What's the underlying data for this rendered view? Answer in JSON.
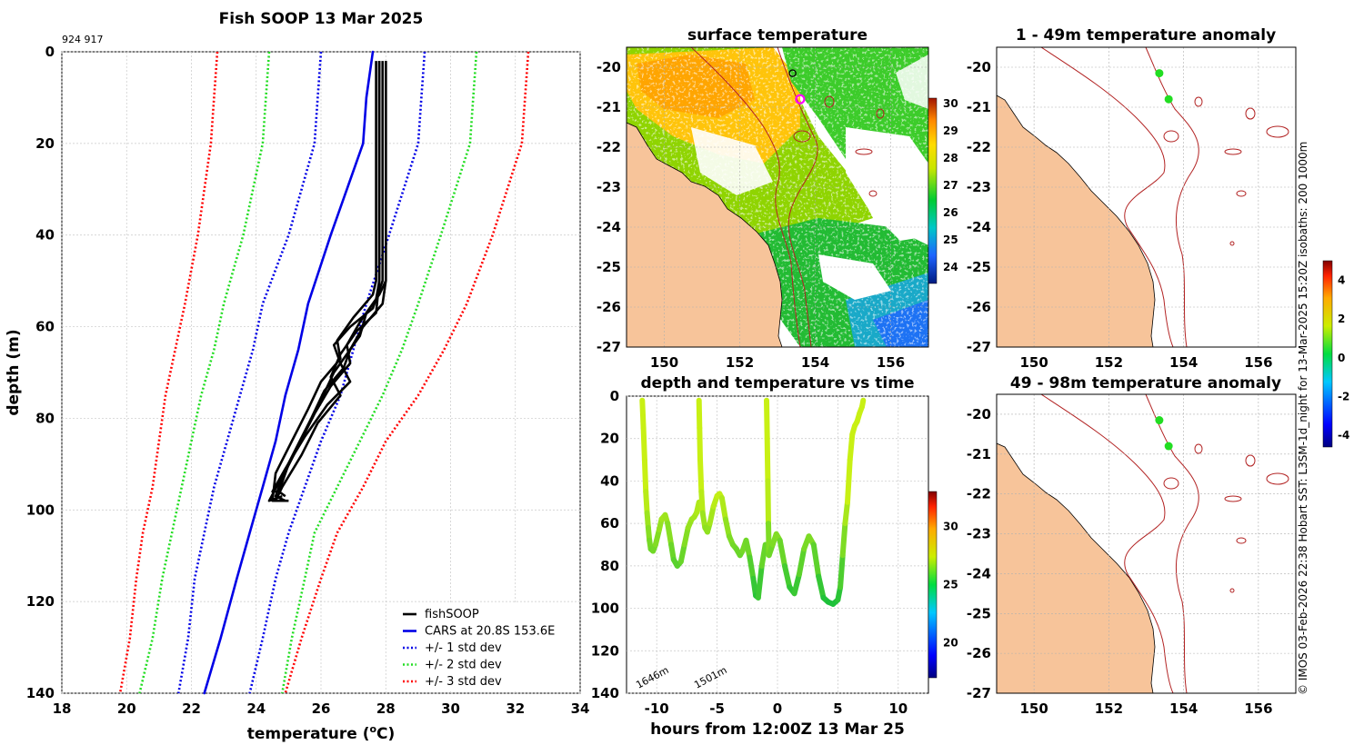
{
  "chart_data": [
    {
      "id": "profile",
      "type": "line",
      "title": "Fish SOOP 13 Mar 2025",
      "corner_note": "924 917",
      "xlabel": "temperature (°C)",
      "xlabel_main": "temperature (",
      "xlabel_sup": "o",
      "xlabel_tail": "C)",
      "ylabel": "depth (m)",
      "xlim": [
        18,
        34
      ],
      "ylim": [
        140,
        0
      ],
      "xticks": [
        "18",
        "20",
        "22",
        "24",
        "26",
        "28",
        "30",
        "32",
        "34"
      ],
      "yticks": [
        "0",
        "20",
        "40",
        "60",
        "80",
        "100",
        "120",
        "140"
      ],
      "legend": [
        {
          "label": "fishSOOP",
          "color": "#000000",
          "style": "solid"
        },
        {
          "label": "CARS at 20.8S 153.6E",
          "color": "#0000e6",
          "style": "solid"
        },
        {
          "label": "+/- 1 std dev",
          "color": "#0000e6",
          "style": "dotted"
        },
        {
          "label": "+/- 2 std dev",
          "color": "#22dd22",
          "style": "dotted"
        },
        {
          "label": "+/- 3 std dev",
          "color": "#ff0000",
          "style": "dotted"
        }
      ],
      "series": [
        {
          "name": "CARS mean",
          "color": "#0000e6",
          "style": "solid",
          "t": [
            27.6,
            27.4,
            27.3,
            26.3,
            25.6,
            25.3,
            24.9,
            24.6,
            24.2,
            23.8,
            23.4,
            22.9,
            22.4
          ],
          "d": [
            0,
            10,
            20,
            40,
            55,
            65,
            75,
            85,
            95,
            105,
            115,
            128,
            140
          ]
        },
        {
          "name": "-1 std",
          "color": "#0000e6",
          "style": "dotted",
          "t": [
            26.0,
            25.9,
            25.8,
            25.0,
            24.2,
            23.9,
            23.5,
            23.1,
            22.7,
            22.4,
            22.1,
            21.9,
            21.6
          ],
          "d": [
            0,
            10,
            20,
            40,
            55,
            65,
            75,
            85,
            95,
            105,
            115,
            128,
            140
          ]
        },
        {
          "name": "+1 std",
          "color": "#0000e6",
          "style": "dotted",
          "t": [
            29.2,
            29.1,
            29.0,
            28.1,
            27.4,
            27.0,
            26.6,
            26.0,
            25.5,
            25.0,
            24.6,
            24.2,
            23.8
          ],
          "d": [
            0,
            10,
            20,
            40,
            55,
            65,
            75,
            85,
            95,
            105,
            115,
            128,
            140
          ]
        },
        {
          "name": "-2 std",
          "color": "#22dd22",
          "style": "dotted",
          "t": [
            24.4,
            24.3,
            24.2,
            23.6,
            23.0,
            22.7,
            22.3,
            22.0,
            21.7,
            21.4,
            21.1,
            20.8,
            20.4
          ],
          "d": [
            0,
            10,
            20,
            40,
            55,
            65,
            75,
            85,
            95,
            105,
            115,
            128,
            140
          ]
        },
        {
          "name": "+2 std",
          "color": "#22dd22",
          "style": "dotted",
          "t": [
            30.8,
            30.7,
            30.6,
            29.7,
            29.0,
            28.5,
            27.9,
            27.2,
            26.5,
            25.8,
            25.5,
            25.1,
            24.8
          ],
          "d": [
            0,
            10,
            20,
            40,
            55,
            65,
            75,
            85,
            95,
            105,
            115,
            128,
            140
          ]
        },
        {
          "name": "-3 std",
          "color": "#ff0000",
          "style": "dotted",
          "t": [
            22.8,
            22.7,
            22.6,
            22.2,
            21.8,
            21.5,
            21.2,
            21.0,
            20.8,
            20.5,
            20.3,
            20.1,
            19.8
          ],
          "d": [
            0,
            10,
            20,
            40,
            55,
            65,
            75,
            85,
            95,
            105,
            115,
            128,
            140
          ]
        },
        {
          "name": "+3 std",
          "color": "#ff0000",
          "style": "dotted",
          "t": [
            32.4,
            32.3,
            32.2,
            31.3,
            30.5,
            29.8,
            29.0,
            28.0,
            27.3,
            26.5,
            26.0,
            25.4,
            24.9
          ],
          "d": [
            0,
            10,
            20,
            40,
            55,
            65,
            75,
            85,
            95,
            105,
            115,
            128,
            140
          ]
        }
      ],
      "fishsoop_profiles": [
        {
          "t": [
            27.7,
            27.7,
            27.7,
            27.7,
            27.6,
            27.0,
            26.5,
            26.6,
            26.0,
            25.6,
            25.1,
            24.6,
            24.5,
            24.6
          ],
          "d": [
            2,
            20,
            40,
            50,
            53,
            58,
            63,
            67,
            72,
            78,
            85,
            92,
            98,
            98
          ]
        },
        {
          "t": [
            27.8,
            27.8,
            27.8,
            27.8,
            27.7,
            27.2,
            26.8,
            26.9,
            26.3,
            25.8,
            25.3,
            24.8,
            24.6,
            24.9
          ],
          "d": [
            2,
            20,
            40,
            50,
            54,
            59,
            64,
            68,
            73,
            79,
            86,
            93,
            97,
            98
          ]
        },
        {
          "t": [
            28.0,
            28.0,
            28.0,
            28.0,
            27.9,
            27.3,
            26.9,
            26.7,
            26.1,
            25.7,
            25.2,
            24.7,
            24.4,
            24.8
          ],
          "d": [
            2,
            20,
            40,
            50,
            55,
            60,
            65,
            69,
            74,
            80,
            87,
            94,
            98,
            97
          ]
        },
        {
          "t": [
            27.9,
            27.9,
            27.9,
            27.9,
            27.6,
            26.9,
            26.4,
            26.6,
            26.9,
            26.2,
            25.5,
            24.9,
            24.5,
            24.7
          ],
          "d": [
            2,
            20,
            40,
            50,
            56,
            60,
            64,
            68,
            72,
            77,
            84,
            91,
            96,
            96
          ]
        },
        {
          "t": [
            27.8,
            27.8,
            27.8,
            27.8,
            27.7,
            27.1,
            26.6,
            26.3,
            26.6,
            25.9,
            25.4,
            24.8,
            24.6,
            25.0
          ],
          "d": [
            2,
            20,
            40,
            50,
            57,
            61,
            66,
            71,
            75,
            81,
            88,
            95,
            98,
            98
          ]
        },
        {
          "t": [
            28.0,
            28.0,
            28.0,
            28.0,
            27.8,
            27.4,
            27.2,
            26.8,
            26.4,
            26.0,
            25.5,
            25.0,
            24.7,
            24.9
          ],
          "d": [
            2,
            20,
            40,
            50,
            53,
            57,
            62,
            66,
            70,
            76,
            83,
            90,
            96,
            97
          ]
        }
      ]
    },
    {
      "id": "sst",
      "type": "heatmap",
      "title": "surface temperature",
      "xlim": [
        149,
        157
      ],
      "ylim": [
        -27,
        -19.5
      ],
      "xticks": [
        "150",
        "152",
        "154",
        "156"
      ],
      "yticks": [
        "-20",
        "-21",
        "-22",
        "-23",
        "-24",
        "-25",
        "-26",
        "-27"
      ],
      "colorbar": {
        "ticks": [
          "24",
          "25",
          "26",
          "27",
          "28",
          "29",
          "30"
        ],
        "min": 23.4,
        "max": 30.2
      },
      "markers": [
        {
          "lon": 153.4,
          "lat": -20.15,
          "kind": "open-black"
        },
        {
          "lon": 153.6,
          "lat": -20.8,
          "kind": "open-magenta"
        }
      ]
    },
    {
      "id": "time",
      "type": "scatter",
      "title": "depth and temperature vs time",
      "xlabel": "hours from 12:00Z 13 Mar 25",
      "xlim": [
        -12.5,
        12.5
      ],
      "ylim": [
        140,
        0
      ],
      "xticks": [
        "-10",
        "-5",
        "0",
        "5",
        "10"
      ],
      "yticks": [
        "0",
        "20",
        "40",
        "60",
        "80",
        "100",
        "120",
        "140"
      ],
      "colorbar": {
        "ticks": [
          "20",
          "25",
          "30"
        ],
        "min": 17,
        "max": 33
      },
      "annotations": [
        "1646m",
        "1501m"
      ],
      "casts": [
        {
          "h": [
            -11.2,
            -11.1,
            -11.0,
            -10.9,
            -10.8,
            -10.7,
            -10.6,
            -10.5,
            -10.3,
            -10.1,
            -9.8,
            -9.6,
            -9.3,
            -9.1,
            -8.8,
            -8.6,
            -8.3,
            -8.0,
            -7.7,
            -7.4,
            -7.1,
            -6.9,
            -6.7,
            -6.5
          ],
          "d": [
            2,
            15,
            30,
            45,
            55,
            62,
            68,
            72,
            73,
            70,
            63,
            58,
            56,
            60,
            70,
            77,
            80,
            78,
            70,
            62,
            58,
            57,
            55,
            50
          ]
        },
        {
          "h": [
            -6.5,
            -6.45,
            -6.4,
            -6.3,
            -6.2,
            -6.0,
            -5.8,
            -5.6,
            -5.3,
            -5.0,
            -4.8,
            -4.6,
            -4.3,
            -4.0,
            -3.7,
            -3.4,
            -3.1,
            -2.9,
            -2.6,
            -2.3,
            -2.0,
            -1.8,
            -1.6,
            -1.3,
            -1.0
          ],
          "d": [
            2,
            15,
            30,
            45,
            55,
            62,
            64,
            60,
            52,
            47,
            46,
            48,
            58,
            66,
            70,
            72,
            75,
            73,
            68,
            76,
            86,
            94,
            95,
            80,
            70
          ]
        },
        {
          "h": [
            -0.9,
            -0.85,
            -0.8,
            -0.75,
            -0.7,
            -0.4,
            -0.1,
            0.2,
            0.6,
            1.0,
            1.4,
            1.8,
            2.2,
            2.6,
            3.0,
            3.4,
            3.8,
            4.2,
            4.6,
            5.0,
            5.2,
            5.4,
            5.6,
            5.8
          ],
          "d": [
            2,
            20,
            40,
            60,
            75,
            70,
            65,
            68,
            80,
            90,
            93,
            84,
            72,
            66,
            70,
            85,
            95,
            97,
            98,
            96,
            90,
            75,
            60,
            50
          ]
        },
        {
          "h": [
            5.8,
            6.0,
            6.2,
            6.4,
            6.6,
            6.8,
            7.0,
            7.1
          ],
          "d": [
            50,
            30,
            18,
            14,
            12,
            8,
            5,
            2
          ]
        }
      ]
    },
    {
      "id": "anom1",
      "type": "heatmap",
      "title": "1 - 49m temperature anomaly",
      "xlim": [
        149,
        157
      ],
      "ylim": [
        -27,
        -19.5
      ],
      "xticks": [
        "150",
        "152",
        "154",
        "156"
      ],
      "yticks": [
        "-20",
        "-21",
        "-22",
        "-23",
        "-24",
        "-25",
        "-26",
        "-27"
      ],
      "markers": [
        {
          "lon": 153.35,
          "lat": -20.15
        },
        {
          "lon": 153.6,
          "lat": -20.8
        }
      ]
    },
    {
      "id": "anom2",
      "type": "heatmap",
      "title": "49 - 98m temperature anomaly",
      "xlim": [
        149,
        157
      ],
      "ylim": [
        -27,
        -19.5
      ],
      "xticks": [
        "150",
        "152",
        "154",
        "156"
      ],
      "yticks": [
        "-20",
        "-21",
        "-22",
        "-23",
        "-24",
        "-25",
        "-26",
        "-27"
      ],
      "markers": [
        {
          "lon": 153.35,
          "lat": -20.15
        },
        {
          "lon": 153.6,
          "lat": -20.8
        }
      ]
    },
    {
      "id": "anom_cbar",
      "type": "heatmap",
      "colorbar": {
        "ticks": [
          "4",
          "2",
          "0",
          "-2",
          "-4"
        ],
        "min": -4.6,
        "max": 5.0
      }
    }
  ],
  "side_note": "© IMOS 03-Feb-2026 22:38 Hobart SST: L3SM-1d_night for 13-Mar-2025 15:20Z isobaths: 200  1000m",
  "colors": {
    "land": "#f7c49a",
    "isobath": "#b22222",
    "grid": "#c8c8c8"
  }
}
